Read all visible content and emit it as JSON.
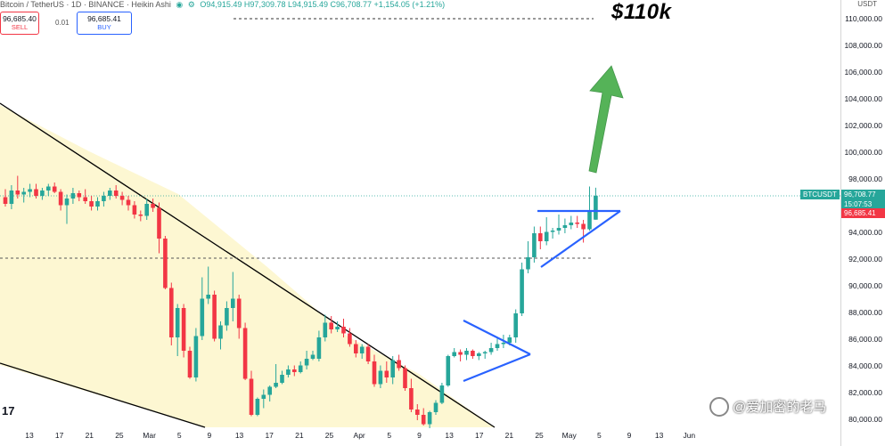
{
  "header": {
    "title": "Bitcoin / TetherUS · 1D · BINANCE · Heikin Ashi",
    "ohlc": "O94,915.49 H97,309.78 L94,915.49 C96,708.77 +1,154.05 (+1.21%)"
  },
  "trade": {
    "sell_price": "96,685.40",
    "sell_label": "SELL",
    "spread": "0.01",
    "buy_price": "96,685.41",
    "buy_label": "BUY"
  },
  "annotation": {
    "target_text": "$110k"
  },
  "price_axis": {
    "currency": "USDT",
    "labels": [
      "110,000.00",
      "108,000.00",
      "106,000.00",
      "104,000.00",
      "102,000.00",
      "100,000.00",
      "98,000.00",
      "94,000.00",
      "92,000.00",
      "90,000.00",
      "88,000.00",
      "86,000.00",
      "84,000.00",
      "82,000.00",
      "80,000.00"
    ],
    "symbol_tag": "BTCUSDT",
    "last_price": "96,708.77",
    "countdown": "15:07:53",
    "bid_price": "96,685.41"
  },
  "time_axis": {
    "labels": [
      "13",
      "17",
      "21",
      "25",
      "Mar",
      "5",
      "9",
      "13",
      "17",
      "21",
      "25",
      "Apr",
      "5",
      "9",
      "13",
      "17",
      "21",
      "25",
      "May",
      "5",
      "9",
      "13",
      "Jun"
    ]
  },
  "watermark": {
    "text": "@爱加密的老马"
  },
  "logo": "17",
  "colors": {
    "up": "#26a69a",
    "down": "#f23645",
    "wedge_fill": "#fdf7d2",
    "trendline": "#000000",
    "triangle": "#2962ff",
    "arrow": "#4caf50"
  },
  "chart_data": {
    "type": "candlestick",
    "style": "Heikin Ashi",
    "symbol": "BTCUSDT",
    "interval": "1D",
    "ylim": [
      80000,
      110800
    ],
    "reference_levels": [
      110000,
      92000
    ],
    "candles": [
      {
        "o": 96600,
        "h": 97200,
        "l": 95900,
        "c": 96100
      },
      {
        "o": 96100,
        "h": 97500,
        "l": 95700,
        "c": 97100
      },
      {
        "o": 97100,
        "h": 98200,
        "l": 96500,
        "c": 96800
      },
      {
        "o": 96800,
        "h": 97300,
        "l": 96200,
        "c": 97000
      },
      {
        "o": 97000,
        "h": 97600,
        "l": 96600,
        "c": 97200
      },
      {
        "o": 97200,
        "h": 97600,
        "l": 96500,
        "c": 96700
      },
      {
        "o": 96700,
        "h": 97300,
        "l": 96400,
        "c": 97100
      },
      {
        "o": 97100,
        "h": 97600,
        "l": 96700,
        "c": 97400
      },
      {
        "o": 97400,
        "h": 97700,
        "l": 96900,
        "c": 97000
      },
      {
        "o": 97000,
        "h": 97200,
        "l": 95600,
        "c": 96000
      },
      {
        "o": 96000,
        "h": 96800,
        "l": 94600,
        "c": 96500
      },
      {
        "o": 96500,
        "h": 97300,
        "l": 96100,
        "c": 96900
      },
      {
        "o": 96900,
        "h": 97100,
        "l": 96300,
        "c": 96600
      },
      {
        "o": 96600,
        "h": 97200,
        "l": 96100,
        "c": 96300
      },
      {
        "o": 96300,
        "h": 96700,
        "l": 95600,
        "c": 95900
      },
      {
        "o": 95900,
        "h": 96600,
        "l": 95600,
        "c": 96300
      },
      {
        "o": 96300,
        "h": 97000,
        "l": 95900,
        "c": 96700
      },
      {
        "o": 96700,
        "h": 97300,
        "l": 96400,
        "c": 97100
      },
      {
        "o": 97100,
        "h": 97500,
        "l": 96500,
        "c": 96700
      },
      {
        "o": 96700,
        "h": 97000,
        "l": 96000,
        "c": 96400
      },
      {
        "o": 96400,
        "h": 96700,
        "l": 95600,
        "c": 96000
      },
      {
        "o": 96000,
        "h": 96300,
        "l": 95000,
        "c": 95300
      },
      {
        "o": 95300,
        "h": 95600,
        "l": 94800,
        "c": 95200
      },
      {
        "o": 95200,
        "h": 96500,
        "l": 94900,
        "c": 96100
      },
      {
        "o": 96100,
        "h": 96500,
        "l": 95500,
        "c": 95800
      },
      {
        "o": 95800,
        "h": 96200,
        "l": 92400,
        "c": 93500
      },
      {
        "o": 93500,
        "h": 93700,
        "l": 89700,
        "c": 89800
      },
      {
        "o": 89800,
        "h": 90200,
        "l": 85500,
        "c": 86100
      },
      {
        "o": 86100,
        "h": 88600,
        "l": 84700,
        "c": 88300
      },
      {
        "o": 88300,
        "h": 88600,
        "l": 84600,
        "c": 85100
      },
      {
        "o": 85100,
        "h": 85400,
        "l": 83000,
        "c": 83100
      },
      {
        "o": 83100,
        "h": 86800,
        "l": 82800,
        "c": 86200
      },
      {
        "o": 86200,
        "h": 90600,
        "l": 85900,
        "c": 89000
      },
      {
        "o": 89000,
        "h": 91400,
        "l": 88600,
        "c": 89300
      },
      {
        "o": 89300,
        "h": 89600,
        "l": 85800,
        "c": 86000
      },
      {
        "o": 86000,
        "h": 87300,
        "l": 85200,
        "c": 87000
      },
      {
        "o": 87000,
        "h": 88800,
        "l": 86600,
        "c": 88300
      },
      {
        "o": 88300,
        "h": 91000,
        "l": 87300,
        "c": 89000
      },
      {
        "o": 89000,
        "h": 89300,
        "l": 86000,
        "c": 86800
      },
      {
        "o": 86800,
        "h": 87200,
        "l": 82900,
        "c": 83000
      },
      {
        "o": 83000,
        "h": 83600,
        "l": 80200,
        "c": 80300
      },
      {
        "o": 80300,
        "h": 81600,
        "l": 80200,
        "c": 81500
      },
      {
        "o": 81500,
        "h": 82200,
        "l": 80800,
        "c": 81800
      },
      {
        "o": 81800,
        "h": 82500,
        "l": 81300,
        "c": 82400
      },
      {
        "o": 82400,
        "h": 84100,
        "l": 82300,
        "c": 82700
      },
      {
        "o": 82700,
        "h": 83600,
        "l": 82600,
        "c": 83300
      },
      {
        "o": 83300,
        "h": 84000,
        "l": 83100,
        "c": 83700
      },
      {
        "o": 83700,
        "h": 84000,
        "l": 83200,
        "c": 83500
      },
      {
        "o": 83500,
        "h": 84300,
        "l": 83400,
        "c": 84000
      },
      {
        "o": 84000,
        "h": 85100,
        "l": 83700,
        "c": 84500
      },
      {
        "o": 84500,
        "h": 85100,
        "l": 84400,
        "c": 84800
      },
      {
        "o": 84500,
        "h": 86600,
        "l": 84300,
        "c": 86100
      },
      {
        "o": 86100,
        "h": 87800,
        "l": 85800,
        "c": 87200
      },
      {
        "o": 87200,
        "h": 87700,
        "l": 86400,
        "c": 86700
      },
      {
        "o": 86700,
        "h": 87300,
        "l": 86500,
        "c": 86900
      },
      {
        "o": 86900,
        "h": 87500,
        "l": 86100,
        "c": 86400
      },
      {
        "o": 86400,
        "h": 86800,
        "l": 85400,
        "c": 85600
      },
      {
        "o": 85600,
        "h": 85900,
        "l": 84600,
        "c": 84900
      },
      {
        "o": 84900,
        "h": 85600,
        "l": 84500,
        "c": 85400
      },
      {
        "o": 85400,
        "h": 85600,
        "l": 84100,
        "c": 84300
      },
      {
        "o": 84300,
        "h": 84800,
        "l": 82400,
        "c": 82600
      },
      {
        "o": 82600,
        "h": 84000,
        "l": 82300,
        "c": 83600
      },
      {
        "o": 83600,
        "h": 84300,
        "l": 82700,
        "c": 83100
      },
      {
        "o": 83100,
        "h": 84700,
        "l": 82600,
        "c": 84400
      },
      {
        "o": 84400,
        "h": 84800,
        "l": 83600,
        "c": 83800
      },
      {
        "o": 83800,
        "h": 84000,
        "l": 82100,
        "c": 82300
      },
      {
        "o": 82300,
        "h": 83000,
        "l": 80500,
        "c": 80700
      },
      {
        "o": 80700,
        "h": 81100,
        "l": 79900,
        "c": 80300
      },
      {
        "o": 80300,
        "h": 80800,
        "l": 79500,
        "c": 79600
      },
      {
        "o": 79600,
        "h": 80600,
        "l": 79300,
        "c": 80500
      },
      {
        "o": 80500,
        "h": 81400,
        "l": 80300,
        "c": 81200
      },
      {
        "o": 81200,
        "h": 82700,
        "l": 81100,
        "c": 82500
      },
      {
        "o": 82500,
        "h": 84800,
        "l": 82400,
        "c": 84700
      },
      {
        "o": 84700,
        "h": 85300,
        "l": 84600,
        "c": 85000
      },
      {
        "o": 85000,
        "h": 85200,
        "l": 84300,
        "c": 84800
      },
      {
        "o": 84800,
        "h": 85300,
        "l": 84400,
        "c": 85100
      },
      {
        "o": 85100,
        "h": 85200,
        "l": 84500,
        "c": 84700
      },
      {
        "o": 84700,
        "h": 85000,
        "l": 84400,
        "c": 84900
      },
      {
        "o": 84900,
        "h": 85100,
        "l": 84500,
        "c": 85000
      },
      {
        "o": 85000,
        "h": 85700,
        "l": 84800,
        "c": 85300
      },
      {
        "o": 85300,
        "h": 86000,
        "l": 85100,
        "c": 85600
      },
      {
        "o": 85600,
        "h": 86300,
        "l": 85300,
        "c": 85700
      },
      {
        "o": 85700,
        "h": 86300,
        "l": 85500,
        "c": 86100
      },
      {
        "o": 86100,
        "h": 88200,
        "l": 85700,
        "c": 87900
      },
      {
        "o": 87900,
        "h": 91700,
        "l": 87700,
        "c": 91200
      },
      {
        "o": 91200,
        "h": 93300,
        "l": 90900,
        "c": 92100
      },
      {
        "o": 92100,
        "h": 94400,
        "l": 91700,
        "c": 93900
      },
      {
        "o": 93900,
        "h": 94400,
        "l": 92700,
        "c": 93300
      },
      {
        "o": 93300,
        "h": 95100,
        "l": 93000,
        "c": 94000
      },
      {
        "o": 94000,
        "h": 94300,
        "l": 93500,
        "c": 94100
      },
      {
        "o": 94100,
        "h": 95300,
        "l": 93800,
        "c": 94300
      },
      {
        "o": 94300,
        "h": 95000,
        "l": 93900,
        "c": 94500
      },
      {
        "o": 94500,
        "h": 95200,
        "l": 94200,
        "c": 94700
      },
      {
        "o": 94700,
        "h": 95200,
        "l": 94300,
        "c": 94600
      },
      {
        "o": 94600,
        "h": 94900,
        "l": 93200,
        "c": 94200
      },
      {
        "o": 94200,
        "h": 97400,
        "l": 94100,
        "c": 95500
      },
      {
        "o": 94915.49,
        "h": 97309.78,
        "l": 94915.49,
        "c": 96708.77
      }
    ]
  }
}
